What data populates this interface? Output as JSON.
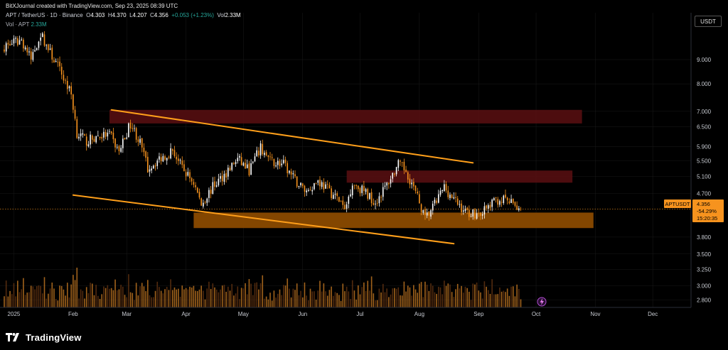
{
  "header": {
    "author_line": "BitXJournal created with TradingView.com, Sep 23, 2025 08:39 UTC",
    "symbol_line": "APT / TetherUS · 1D · Binance",
    "open_label": "O",
    "open": "4.303",
    "high_label": "H",
    "high": "4.370",
    "low_label": "L",
    "low": "4.207",
    "close_label": "C",
    "close": "4.356",
    "change": "+0.053 (+1.23%)",
    "vol_label": "Vol",
    "vol": "2.33M",
    "vol_indicator": "Vol · APT",
    "vol_indicator_value": "2.33M"
  },
  "currency_label": "USDT",
  "footer": {
    "brand": "TradingView",
    "logo_icon": "tradingview-logo-icon"
  },
  "price_tag": {
    "symbol": "APTUSDT",
    "price": "4.356",
    "change_pct": "-54.29%",
    "countdown": "15:20:35"
  },
  "colors": {
    "up": "#ffffff",
    "down": "#f7931e",
    "trendline": "#ff9f1a",
    "resistance_zone": "#5a0f12",
    "support_zone": "#8a4a00",
    "volume_up": "#5a2f10",
    "volume_down": "#b06b1e",
    "grid": "#1a1a1a"
  },
  "chart_data": {
    "type": "candlestick",
    "symbol": "APT/USDT",
    "timeframe": "1D",
    "exchange": "Binance",
    "y_scale": "log",
    "ylim": [
      2.7,
      11.3
    ],
    "y_ticks": [
      "9.000",
      "8.000",
      "7.000",
      "6.500",
      "5.900",
      "5.500",
      "5.100",
      "4.700",
      "3.800",
      "3.500",
      "3.250",
      "3.000",
      "2.800"
    ],
    "x_range": [
      "2024-12-27",
      "2025-12-21"
    ],
    "x_ticks": [
      {
        "label": "2025",
        "date": "2025-01-01"
      },
      {
        "label": "Feb",
        "date": "2025-02-01"
      },
      {
        "label": "Mar",
        "date": "2025-03-01"
      },
      {
        "label": "Apr",
        "date": "2025-04-01"
      },
      {
        "label": "May",
        "date": "2025-05-01"
      },
      {
        "label": "Jun",
        "date": "2025-06-01"
      },
      {
        "label": "Jul",
        "date": "2025-07-01"
      },
      {
        "label": "Aug",
        "date": "2025-08-01"
      },
      {
        "label": "Sep",
        "date": "2025-09-01"
      },
      {
        "label": "Oct",
        "date": "2025-10-01"
      },
      {
        "label": "Nov",
        "date": "2025-11-01"
      },
      {
        "label": "Dec",
        "date": "2025-12-01"
      }
    ],
    "close_series": [
      [
        "2024-12-27",
        9.6
      ],
      [
        "2025-01-05",
        9.9
      ],
      [
        "2025-01-10",
        9.0
      ],
      [
        "2025-01-15",
        10.2
      ],
      [
        "2025-01-20",
        9.3
      ],
      [
        "2025-01-26",
        8.4
      ],
      [
        "2025-01-31",
        7.6
      ],
      [
        "2025-02-03",
        6.3
      ],
      [
        "2025-02-08",
        6.05
      ],
      [
        "2025-02-14",
        6.2
      ],
      [
        "2025-02-20",
        6.25
      ],
      [
        "2025-02-25",
        5.75
      ],
      [
        "2025-03-03",
        6.6
      ],
      [
        "2025-03-08",
        6.0
      ],
      [
        "2025-03-12",
        5.3
      ],
      [
        "2025-03-18",
        5.55
      ],
      [
        "2025-03-25",
        5.8
      ],
      [
        "2025-03-30",
        5.3
      ],
      [
        "2025-04-05",
        4.95
      ],
      [
        "2025-04-09",
        4.45
      ],
      [
        "2025-04-15",
        4.85
      ],
      [
        "2025-04-22",
        5.2
      ],
      [
        "2025-04-28",
        5.55
      ],
      [
        "2025-05-04",
        5.25
      ],
      [
        "2025-05-10",
        5.85
      ],
      [
        "2025-05-15",
        5.5
      ],
      [
        "2025-05-22",
        5.4
      ],
      [
        "2025-05-28",
        5.0
      ],
      [
        "2025-06-03",
        4.75
      ],
      [
        "2025-06-09",
        5.0
      ],
      [
        "2025-06-15",
        4.75
      ],
      [
        "2025-06-21",
        4.5
      ],
      [
        "2025-06-23",
        4.3
      ],
      [
        "2025-06-27",
        4.95
      ],
      [
        "2025-07-03",
        4.75
      ],
      [
        "2025-07-09",
        4.5
      ],
      [
        "2025-07-15",
        4.9
      ],
      [
        "2025-07-21",
        5.4
      ],
      [
        "2025-07-25",
        5.25
      ],
      [
        "2025-07-31",
        4.6
      ],
      [
        "2025-08-04",
        4.15
      ],
      [
        "2025-08-09",
        4.45
      ],
      [
        "2025-08-14",
        4.85
      ],
      [
        "2025-08-19",
        4.55
      ],
      [
        "2025-08-25",
        4.3
      ],
      [
        "2025-08-31",
        4.25
      ],
      [
        "2025-09-05",
        4.35
      ],
      [
        "2025-09-10",
        4.55
      ],
      [
        "2025-09-15",
        4.55
      ],
      [
        "2025-09-19",
        4.45
      ],
      [
        "2025-09-23",
        4.356
      ]
    ],
    "last_price": 4.356,
    "zones": [
      {
        "kind": "resistance",
        "from": "2025-02-20",
        "to": "2025-10-25",
        "low": 6.6,
        "high": 7.05
      },
      {
        "kind": "resistance",
        "from": "2025-06-24",
        "to": "2025-10-20",
        "low": 4.95,
        "high": 5.25
      },
      {
        "kind": "support",
        "from": "2025-04-05",
        "to": "2025-10-31",
        "low": 3.97,
        "high": 4.28
      }
    ],
    "trendlines": [
      {
        "from": [
          "2025-02-21",
          7.05
        ],
        "to": [
          "2025-08-29",
          5.45
        ]
      },
      {
        "from": [
          "2025-02-01",
          4.66
        ],
        "to": [
          "2025-08-19",
          3.68
        ]
      }
    ]
  }
}
